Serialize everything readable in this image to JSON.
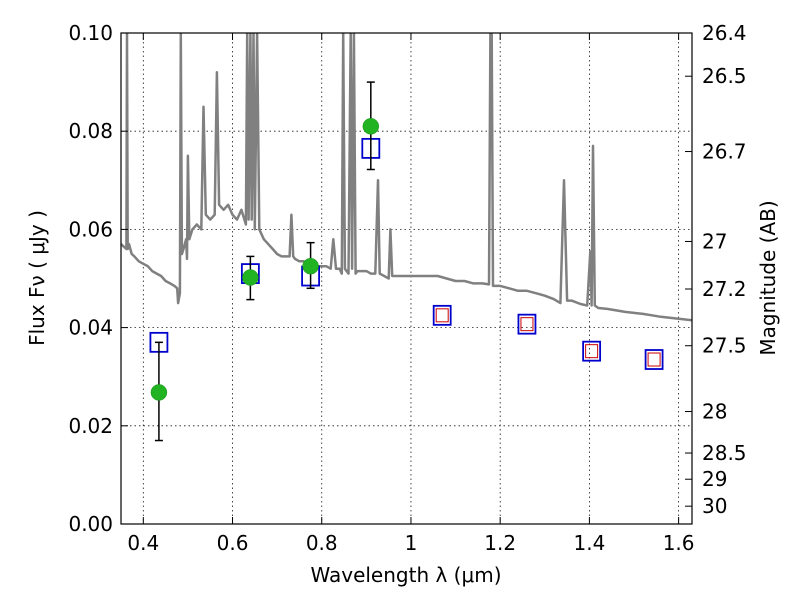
{
  "chart_data": {
    "type": "scatter",
    "xlabel": "Wavelength  λ (μm)",
    "ylabel": "Flux  Fν  ( μJy )",
    "y2label": "Magnitude (AB)",
    "xlim": [
      0.35,
      1.63
    ],
    "ylim": [
      0.0,
      0.1
    ],
    "x_ticks": [
      0.4,
      0.6,
      0.8,
      1.0,
      1.2,
      1.4,
      1.6
    ],
    "x_tick_labels": [
      "0.4",
      "0.6",
      "0.8",
      "1",
      "1.2",
      "1.4",
      "1.6"
    ],
    "y_ticks": [
      0.0,
      0.02,
      0.04,
      0.06,
      0.08,
      0.1
    ],
    "y_tick_labels": [
      "0.00",
      "0.02",
      "0.04",
      "0.06",
      "0.08",
      "0.10"
    ],
    "y2_ticks": [
      26.4,
      26.5,
      26.7,
      27,
      27.2,
      27.5,
      28,
      28.5,
      29,
      30
    ],
    "y2_tick_labels": [
      "26.4",
      "26.5",
      "26.7",
      "27",
      "27.2",
      "27.5",
      "28",
      "28.5",
      "29",
      "30"
    ],
    "grid": true,
    "colors": {
      "spectrum": "#808080",
      "model_box": "#0000cc",
      "model_box_inner": "#cc0000",
      "observed": "#22b322",
      "errorbar": "#000000"
    },
    "series": [
      {
        "kind": "line",
        "points": [
          [
            0.35,
            0.057
          ],
          [
            0.356,
            0.0565
          ],
          [
            0.362,
            0.056
          ],
          [
            0.3635,
            0.1
          ],
          [
            0.365,
            0.056
          ],
          [
            0.368,
            0.057
          ],
          [
            0.374,
            0.055
          ],
          [
            0.38,
            0.0545
          ],
          [
            0.39,
            0.0535
          ],
          [
            0.4,
            0.053
          ],
          [
            0.41,
            0.0525
          ],
          [
            0.42,
            0.0515
          ],
          [
            0.43,
            0.051
          ],
          [
            0.44,
            0.0505
          ],
          [
            0.45,
            0.0495
          ],
          [
            0.46,
            0.049
          ],
          [
            0.47,
            0.0485
          ],
          [
            0.476,
            0.048
          ],
          [
            0.478,
            0.045
          ],
          [
            0.482,
            0.047
          ],
          [
            0.484,
            0.1
          ],
          [
            0.4865,
            0.055
          ],
          [
            0.49,
            0.056
          ],
          [
            0.496,
            0.058
          ],
          [
            0.498,
            0.054
          ],
          [
            0.5,
            0.075
          ],
          [
            0.503,
            0.058
          ],
          [
            0.51,
            0.06
          ],
          [
            0.52,
            0.061
          ],
          [
            0.53,
            0.06
          ],
          [
            0.535,
            0.085
          ],
          [
            0.54,
            0.063
          ],
          [
            0.55,
            0.062
          ],
          [
            0.56,
            0.063
          ],
          [
            0.565,
            0.092
          ],
          [
            0.57,
            0.065
          ],
          [
            0.58,
            0.064
          ],
          [
            0.59,
            0.065
          ],
          [
            0.6,
            0.063
          ],
          [
            0.61,
            0.062
          ],
          [
            0.62,
            0.064
          ],
          [
            0.63,
            0.061
          ],
          [
            0.633,
            0.1
          ],
          [
            0.636,
            0.062
          ],
          [
            0.64,
            0.1
          ],
          [
            0.643,
            0.062
          ],
          [
            0.647,
            0.1
          ],
          [
            0.65,
            0.06
          ],
          [
            0.655,
            0.1
          ],
          [
            0.66,
            0.06
          ],
          [
            0.67,
            0.058
          ],
          [
            0.68,
            0.057
          ],
          [
            0.69,
            0.056
          ],
          [
            0.7,
            0.055
          ],
          [
            0.71,
            0.0545
          ],
          [
            0.72,
            0.0545
          ],
          [
            0.728,
            0.0545
          ],
          [
            0.732,
            0.063
          ],
          [
            0.736,
            0.0545
          ],
          [
            0.74,
            0.054
          ],
          [
            0.75,
            0.0535
          ],
          [
            0.76,
            0.0535
          ],
          [
            0.77,
            0.053
          ],
          [
            0.78,
            0.053
          ],
          [
            0.79,
            0.0525
          ],
          [
            0.8,
            0.0525
          ],
          [
            0.81,
            0.0525
          ],
          [
            0.82,
            0.052
          ],
          [
            0.826,
            0.058
          ],
          [
            0.832,
            0.052
          ],
          [
            0.84,
            0.052
          ],
          [
            0.845,
            0.051
          ],
          [
            0.848,
            0.1
          ],
          [
            0.852,
            0.052
          ],
          [
            0.86,
            0.051
          ],
          [
            0.865,
            0.1
          ],
          [
            0.868,
            0.052
          ],
          [
            0.872,
            0.1
          ],
          [
            0.876,
            0.051
          ],
          [
            0.88,
            0.0515
          ],
          [
            0.89,
            0.0515
          ],
          [
            0.9,
            0.0515
          ],
          [
            0.91,
            0.051
          ],
          [
            0.92,
            0.051
          ],
          [
            0.926,
            0.07
          ],
          [
            0.93,
            0.051
          ],
          [
            0.94,
            0.0505
          ],
          [
            0.95,
            0.05
          ],
          [
            0.954,
            0.06
          ],
          [
            0.958,
            0.0505
          ],
          [
            0.97,
            0.0505
          ],
          [
            0.98,
            0.0505
          ],
          [
            1.0,
            0.0505
          ],
          [
            1.02,
            0.0505
          ],
          [
            1.04,
            0.0505
          ],
          [
            1.06,
            0.0505
          ],
          [
            1.08,
            0.05
          ],
          [
            1.1,
            0.0495
          ],
          [
            1.12,
            0.0495
          ],
          [
            1.14,
            0.049
          ],
          [
            1.16,
            0.049
          ],
          [
            1.175,
            0.0488
          ],
          [
            1.178,
            0.1
          ],
          [
            1.181,
            0.1
          ],
          [
            1.184,
            0.0485
          ],
          [
            1.2,
            0.0485
          ],
          [
            1.22,
            0.048
          ],
          [
            1.24,
            0.0475
          ],
          [
            1.26,
            0.0475
          ],
          [
            1.28,
            0.047
          ],
          [
            1.3,
            0.0465
          ],
          [
            1.32,
            0.0458
          ],
          [
            1.335,
            0.045
          ],
          [
            1.343,
            0.07
          ],
          [
            1.35,
            0.0455
          ],
          [
            1.36,
            0.0455
          ],
          [
            1.38,
            0.0448
          ],
          [
            1.395,
            0.0445
          ],
          [
            1.402,
            0.0555
          ],
          [
            1.405,
            0.0445
          ],
          [
            1.408,
            0.077
          ],
          [
            1.412,
            0.0445
          ],
          [
            1.42,
            0.044
          ],
          [
            1.44,
            0.0438
          ],
          [
            1.46,
            0.0435
          ],
          [
            1.48,
            0.0432
          ],
          [
            1.5,
            0.043
          ],
          [
            1.52,
            0.0428
          ],
          [
            1.54,
            0.0425
          ],
          [
            1.56,
            0.0422
          ],
          [
            1.58,
            0.042
          ],
          [
            1.6,
            0.0418
          ],
          [
            1.63,
            0.0415
          ]
        ]
      },
      {
        "kind": "model_boxes",
        "points": [
          {
            "x": 0.435,
            "y": 0.037,
            "inner": false
          },
          {
            "x": 0.64,
            "y": 0.051,
            "inner": false
          },
          {
            "x": 0.775,
            "y": 0.0505,
            "inner": false
          },
          {
            "x": 0.91,
            "y": 0.0765,
            "inner": false
          },
          {
            "x": 1.07,
            "y": 0.0425,
            "inner": true
          },
          {
            "x": 1.26,
            "y": 0.0407,
            "inner": true
          },
          {
            "x": 1.405,
            "y": 0.0352,
            "inner": true
          },
          {
            "x": 1.545,
            "y": 0.0335,
            "inner": true
          }
        ]
      },
      {
        "kind": "observed",
        "points": [
          {
            "x": 0.435,
            "y": 0.0268,
            "err_low": 0.0098,
            "err_high": 0.0102
          },
          {
            "x": 0.64,
            "y": 0.0502,
            "err_low": 0.0045,
            "err_high": 0.0043
          },
          {
            "x": 0.775,
            "y": 0.0525,
            "err_low": 0.0045,
            "err_high": 0.0048
          },
          {
            "x": 0.91,
            "y": 0.081,
            "err_low": 0.0088,
            "err_high": 0.009
          }
        ]
      }
    ]
  }
}
